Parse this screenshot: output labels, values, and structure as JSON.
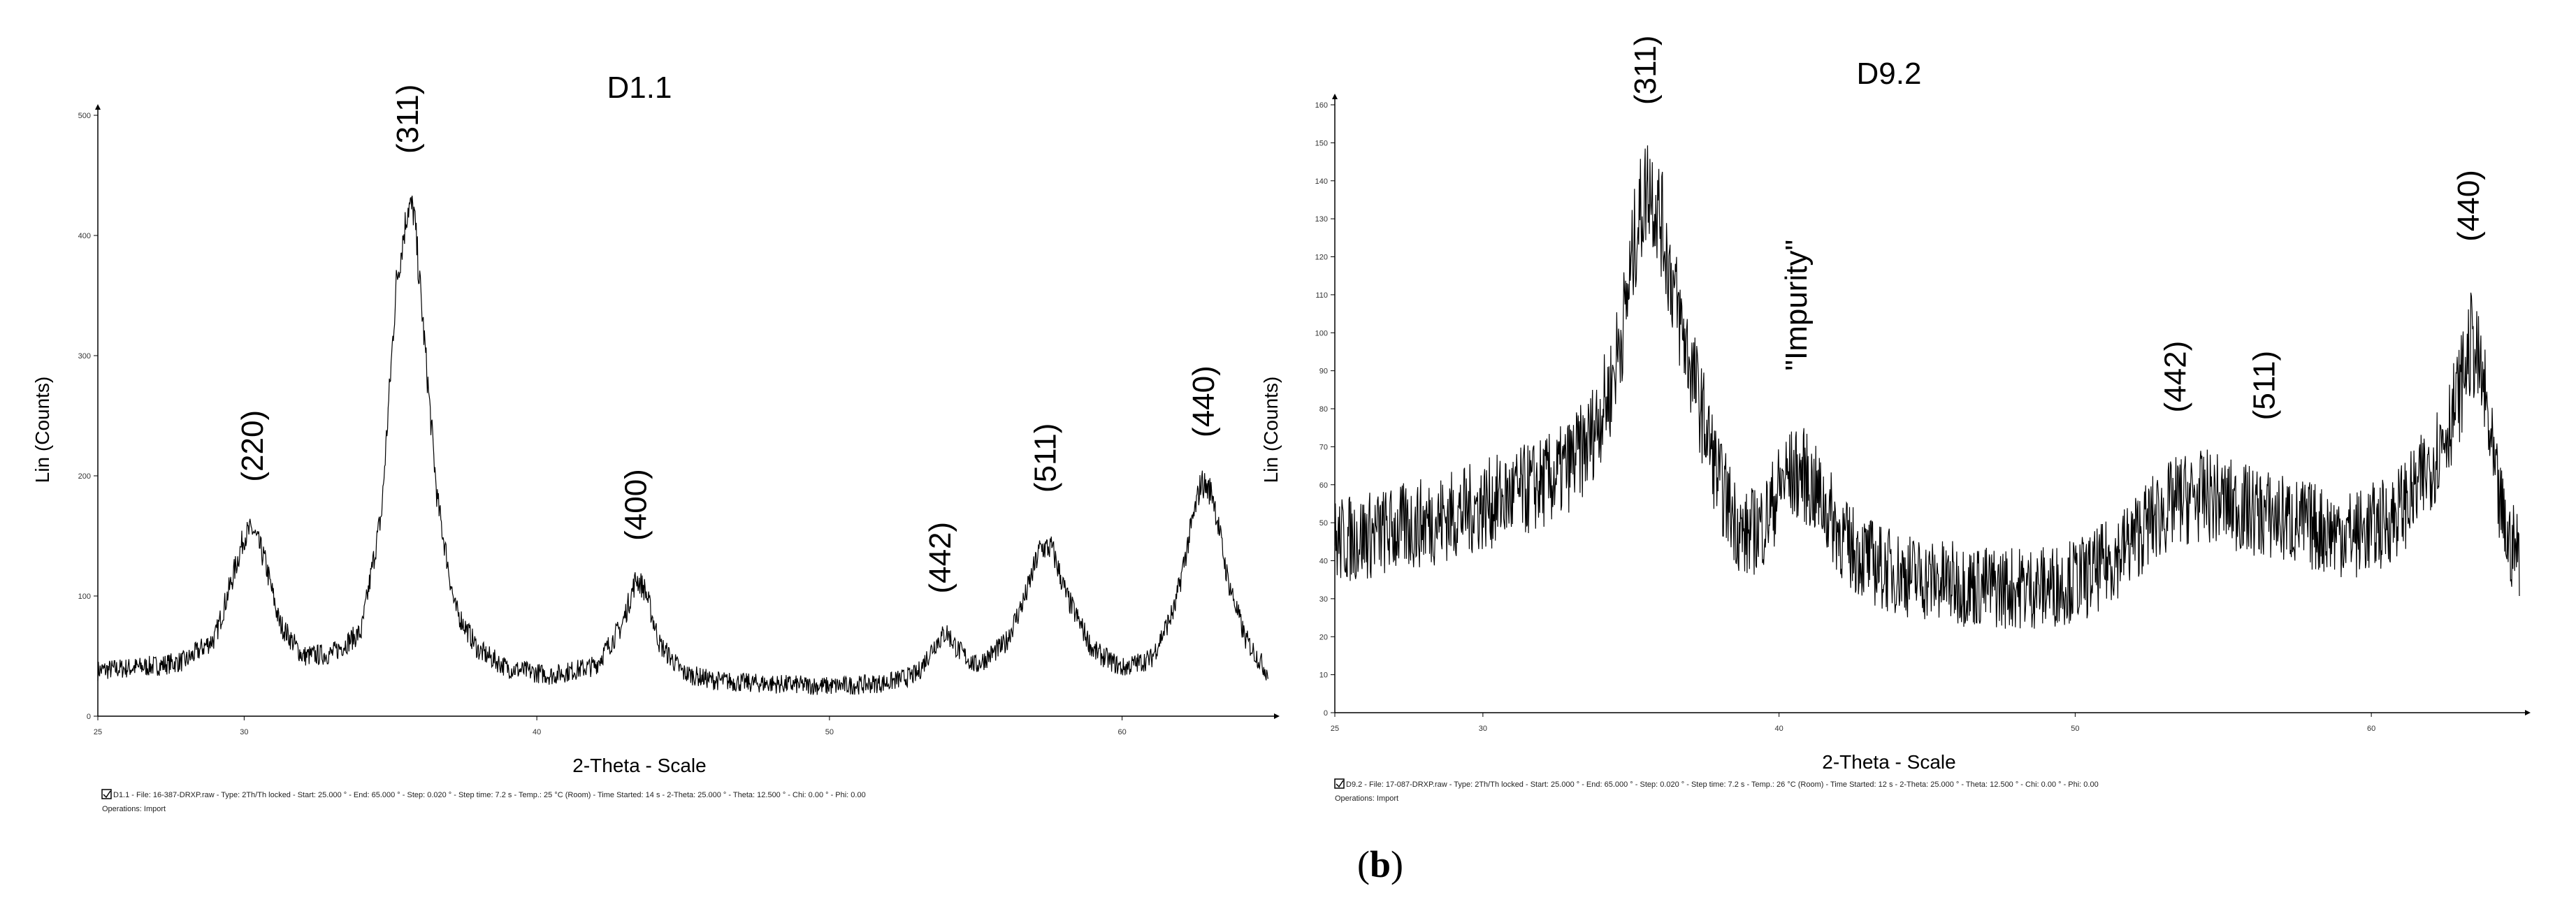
{
  "chart_data": [
    {
      "type": "line",
      "title": "D1.1",
      "xlabel": "2-Theta - Scale",
      "ylabel": "Lin (Counts)",
      "xlim": [
        25,
        65
      ],
      "ylim": [
        0,
        500
      ],
      "x_ticks": [
        "25",
        "30",
        "40",
        "50",
        "60"
      ],
      "x_tick_values": [
        25,
        30,
        40,
        50,
        60
      ],
      "y_ticks": [
        "0",
        "100",
        "200",
        "300",
        "400",
        "500"
      ],
      "y_tick_values": [
        0,
        100,
        200,
        300,
        400,
        500
      ],
      "noise": 9,
      "series": [
        {
          "values_x": [
            25,
            26,
            27,
            28,
            29,
            29.6,
            30.0,
            30.3,
            30.7,
            31.2,
            32,
            33,
            34,
            34.7,
            35.2,
            35.6,
            35.8,
            36.1,
            36.6,
            37.2,
            38,
            39,
            40.5,
            42,
            42.9,
            43.4,
            43.7,
            44.2,
            45,
            46,
            47,
            48,
            49,
            50,
            51,
            52,
            53,
            53.6,
            54,
            54.4,
            55,
            56,
            56.7,
            57.2,
            57.6,
            58.1,
            59,
            60,
            61,
            61.8,
            62.3,
            62.7,
            63.1,
            63.6,
            64.2,
            65
          ],
          "values_y": [
            38,
            40,
            42,
            46,
            65,
            115,
            150,
            155,
            130,
            78,
            50,
            52,
            70,
            170,
            360,
            425,
            420,
            330,
            180,
            90,
            55,
            40,
            34,
            42,
            75,
            115,
            105,
            60,
            36,
            30,
            28,
            27,
            26,
            25,
            26,
            28,
            35,
            60,
            70,
            55,
            42,
            60,
            100,
            140,
            140,
            100,
            55,
            40,
            48,
            90,
            150,
            195,
            185,
            115,
            65,
            35
          ]
        }
      ],
      "peak_labels": [
        {
          "text": "(220)",
          "x": 30.3,
          "y": 195
        },
        {
          "text": "(311)",
          "x": 35.6,
          "y": 468
        },
        {
          "text": "(400)",
          "x": 43.4,
          "y": 146
        },
        {
          "text": "(442)",
          "x": 53.8,
          "y": 102
        },
        {
          "text": "(511)",
          "x": 57.4,
          "y": 186
        },
        {
          "text": "(440)",
          "x": 62.8,
          "y": 232
        }
      ],
      "footer": [
        "D1.1 - File: 16-387-DRXP.raw - Type: 2Th/Th locked - Start: 25.000 ° - End: 65.000 ° - Step: 0.020 ° - Step time: 7.2 s - Temp.: 25 °C (Room) - Time Started: 14 s - 2-Theta: 25.000 ° - Theta: 12.500 ° - Chi: 0.00 ° - Phi: 0.00",
        "Operations: Import"
      ]
    },
    {
      "type": "line",
      "title": "D9.2",
      "xlabel": "2-Theta - Scale",
      "ylabel": "Lin (Counts)",
      "xlim": [
        25,
        65
      ],
      "ylim": [
        0,
        160
      ],
      "x_ticks": [
        "25",
        "30",
        "40",
        "50",
        "60"
      ],
      "x_tick_values": [
        25,
        30,
        40,
        50,
        60
      ],
      "y_ticks": [
        "0",
        "10",
        "20",
        "30",
        "40",
        "50",
        "60",
        "70",
        "80",
        "90",
        "100",
        "110",
        "120",
        "130",
        "140",
        "150",
        "160"
      ],
      "y_tick_values": [
        0,
        10,
        20,
        30,
        40,
        50,
        60,
        70,
        80,
        90,
        100,
        110,
        120,
        130,
        140,
        150,
        160
      ],
      "noise": 12,
      "series": [
        {
          "values_x": [
            25,
            27,
            29,
            31,
            32.5,
            33.5,
            34.3,
            34.8,
            35.2,
            35.6,
            36.0,
            36.6,
            37.3,
            38,
            38.8,
            39.5,
            40.2,
            40.8,
            41.5,
            42.3,
            43.5,
            45,
            47,
            49,
            50.5,
            51.5,
            52.5,
            53.5,
            54.5,
            55.5,
            56.5,
            57.5,
            58.5,
            59.5,
            60.5,
            61.5,
            62.3,
            62.9,
            63.4,
            63.8,
            64.2,
            64.6,
            65
          ],
          "values_y": [
            45,
            48,
            52,
            57,
            62,
            70,
            85,
            105,
            128,
            140,
            130,
            105,
            82,
            60,
            46,
            50,
            62,
            63,
            55,
            44,
            38,
            35,
            33,
            33,
            36,
            42,
            50,
            56,
            57,
            54,
            52,
            50,
            48,
            47,
            50,
            58,
            70,
            82,
            98,
            85,
            60,
            45,
            42
          ]
        }
      ],
      "peak_labels": [
        {
          "text": "(311)",
          "x": 35.5,
          "y": 160
        },
        {
          "text": "\"Impurity\"",
          "x": 40.6,
          "y": 90
        },
        {
          "text": "(442)",
          "x": 53.4,
          "y": 79
        },
        {
          "text": "(511)",
          "x": 56.4,
          "y": 77
        },
        {
          "text": "(440)",
          "x": 63.3,
          "y": 124
        }
      ],
      "footer": [
        "D9.2 - File: 17-087-DRXP.raw - Type: 2Th/Th locked - Start: 25.000 ° - End: 65.000 ° - Step: 0.020 ° - Step time: 7.2 s - Temp.: 26 °C (Room) - Time Started: 12 s - 2-Theta: 25.000 ° - Theta: 12.500 ° - Chi: 0.00 ° - Phi: 0.00",
        "Operations: Import"
      ]
    }
  ],
  "caption": {
    "open": "(",
    "letter": "b",
    "close": ")"
  }
}
